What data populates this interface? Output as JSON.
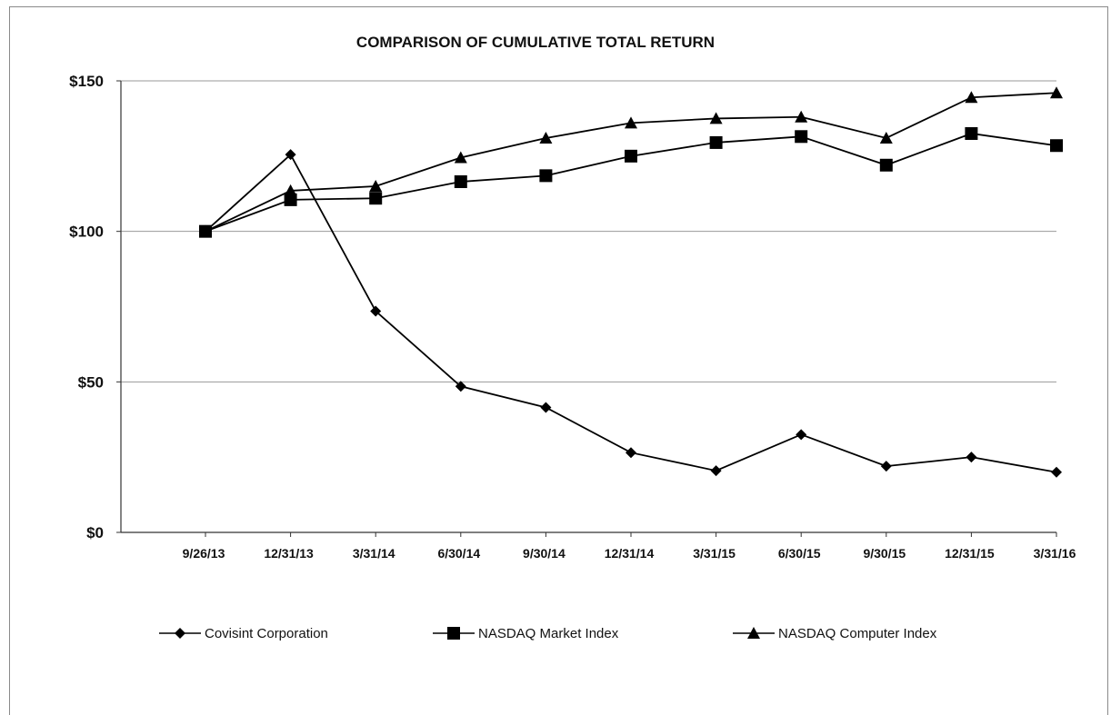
{
  "chart_data": {
    "type": "line",
    "title": "COMPARISON OF CUMULATIVE TOTAL RETURN",
    "categories": [
      "9/26/13",
      "12/31/13",
      "3/31/14",
      "6/30/14",
      "9/30/14",
      "12/31/14",
      "3/31/15",
      "6/30/15",
      "9/30/15",
      "12/31/15",
      "3/31/16"
    ],
    "y_ticks": [
      "$0",
      "$50",
      "$100",
      "$150"
    ],
    "ylim": [
      0,
      150
    ],
    "grid": true,
    "legend_position": "bottom",
    "series": [
      {
        "name": "Covisint Corporation",
        "marker": "diamond",
        "values": [
          100,
          125.5,
          73.5,
          48.5,
          41.5,
          26.5,
          20.5,
          32.5,
          22,
          25,
          20
        ]
      },
      {
        "name": "NASDAQ Market Index",
        "marker": "square",
        "values": [
          100,
          110.5,
          111,
          116.5,
          118.5,
          125,
          129.5,
          131.5,
          122,
          132.5,
          128.5
        ]
      },
      {
        "name": "NASDAQ Computer Index",
        "marker": "triangle",
        "values": [
          100,
          113.5,
          115,
          124.5,
          131,
          136,
          137.5,
          138,
          131,
          144.5,
          146
        ]
      }
    ]
  }
}
